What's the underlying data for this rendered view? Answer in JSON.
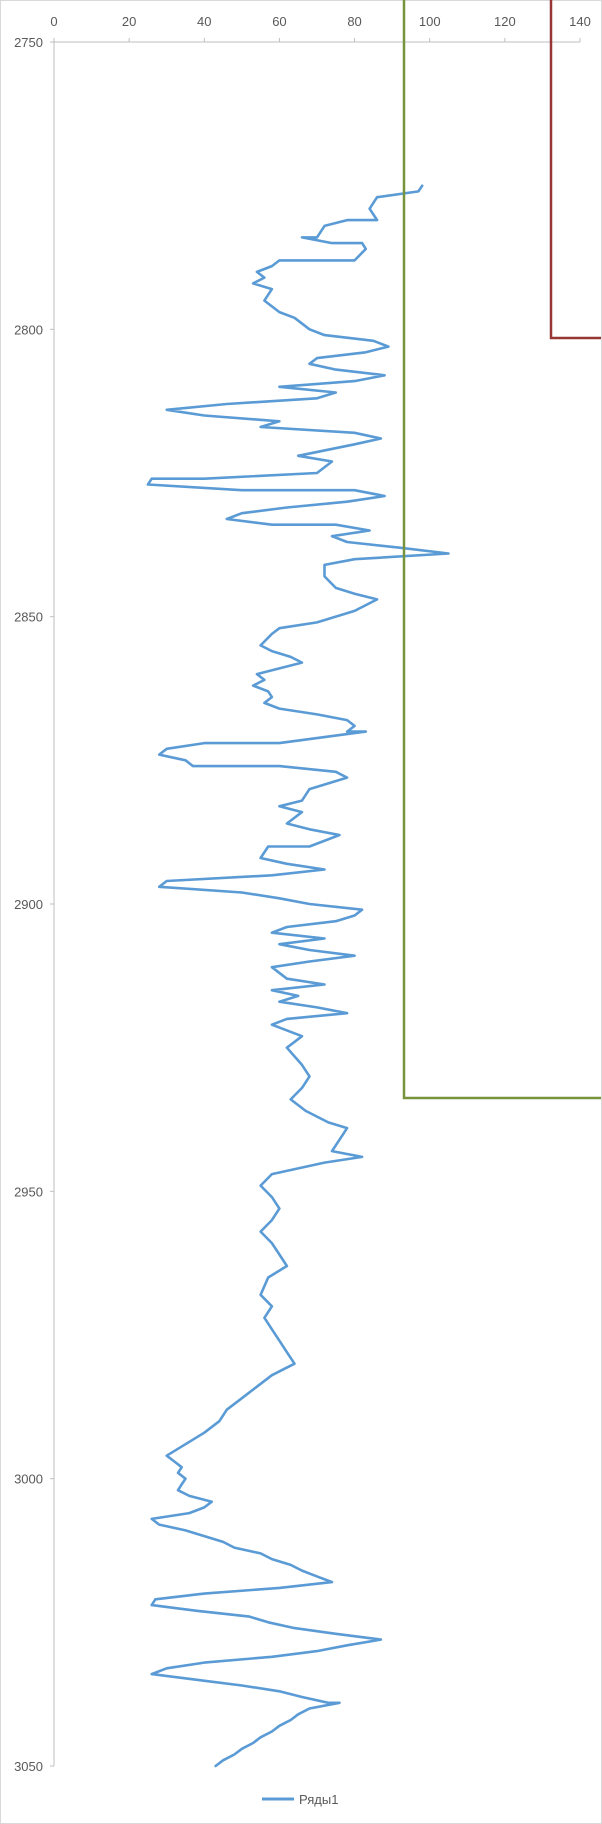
{
  "chart_data": {
    "type": "line",
    "title": "",
    "xlabel": "",
    "ylabel": "",
    "xlim": [
      0,
      140
    ],
    "ylim": [
      2750,
      3050
    ],
    "x_axis_position": "top",
    "y_axis_reversed": true,
    "grid": false,
    "legend": "bottom",
    "x_ticks": [
      "0",
      "20",
      "40",
      "60",
      "80",
      "100",
      "120",
      "140"
    ],
    "y_ticks": [
      "2750",
      "2800",
      "2850",
      "2900",
      "2950",
      "3000",
      "3050"
    ],
    "series": [
      {
        "name": "Ряды1",
        "color": "#5b9bd5",
        "points": [
          [
            98,
            2775
          ],
          [
            97,
            2776
          ],
          [
            86,
            2777
          ],
          [
            84,
            2779
          ],
          [
            86,
            2781
          ],
          [
            78,
            2781
          ],
          [
            72,
            2782
          ],
          [
            70,
            2784
          ],
          [
            66,
            2784
          ],
          [
            74,
            2785
          ],
          [
            82,
            2785
          ],
          [
            83,
            2786
          ],
          [
            80,
            2788
          ],
          [
            60,
            2788
          ],
          [
            58,
            2789
          ],
          [
            54,
            2790
          ],
          [
            56,
            2791
          ],
          [
            53,
            2792
          ],
          [
            58,
            2793
          ],
          [
            56,
            2795
          ],
          [
            60,
            2797
          ],
          [
            64,
            2798
          ],
          [
            68,
            2800
          ],
          [
            72,
            2801
          ],
          [
            85,
            2802
          ],
          [
            89,
            2803
          ],
          [
            83,
            2804
          ],
          [
            70,
            2805
          ],
          [
            68,
            2806
          ],
          [
            75,
            2807
          ],
          [
            88,
            2808
          ],
          [
            80,
            2809
          ],
          [
            60,
            2810
          ],
          [
            75,
            2811
          ],
          [
            70,
            2812
          ],
          [
            46,
            2813
          ],
          [
            30,
            2814
          ],
          [
            40,
            2815
          ],
          [
            60,
            2816
          ],
          [
            55,
            2817
          ],
          [
            80,
            2818
          ],
          [
            87,
            2819
          ],
          [
            80,
            2820
          ],
          [
            65,
            2822
          ],
          [
            74,
            2823
          ],
          [
            70,
            2825
          ],
          [
            40,
            2826
          ],
          [
            26,
            2826
          ],
          [
            25,
            2827
          ],
          [
            50,
            2828
          ],
          [
            80,
            2828
          ],
          [
            88,
            2829
          ],
          [
            78,
            2830
          ],
          [
            62,
            2831
          ],
          [
            50,
            2832
          ],
          [
            46,
            2833
          ],
          [
            58,
            2834
          ],
          [
            75,
            2834
          ],
          [
            84,
            2835
          ],
          [
            74,
            2836
          ],
          [
            78,
            2837
          ],
          [
            92,
            2838
          ],
          [
            105,
            2839
          ],
          [
            80,
            2840
          ],
          [
            72,
            2841
          ],
          [
            72,
            2843
          ],
          [
            75,
            2845
          ],
          [
            80,
            2846
          ],
          [
            86,
            2847
          ],
          [
            80,
            2849
          ],
          [
            70,
            2851
          ],
          [
            60,
            2852
          ],
          [
            58,
            2853
          ],
          [
            55,
            2855
          ],
          [
            58,
            2856
          ],
          [
            63,
            2857
          ],
          [
            66,
            2858
          ],
          [
            60,
            2859
          ],
          [
            54,
            2860
          ],
          [
            56,
            2861
          ],
          [
            53,
            2862
          ],
          [
            57,
            2863
          ],
          [
            58,
            2864
          ],
          [
            56,
            2865
          ],
          [
            60,
            2866
          ],
          [
            70,
            2867
          ],
          [
            78,
            2868
          ],
          [
            80,
            2869
          ],
          [
            78,
            2870
          ],
          [
            83,
            2870
          ],
          [
            60,
            2872
          ],
          [
            40,
            2872
          ],
          [
            30,
            2873
          ],
          [
            28,
            2874
          ],
          [
            35,
            2875
          ],
          [
            37,
            2876
          ],
          [
            60,
            2876
          ],
          [
            75,
            2877
          ],
          [
            78,
            2878
          ],
          [
            68,
            2880
          ],
          [
            66,
            2882
          ],
          [
            60,
            2883
          ],
          [
            66,
            2884
          ],
          [
            62,
            2886
          ],
          [
            68,
            2887
          ],
          [
            76,
            2888
          ],
          [
            68,
            2890
          ],
          [
            57,
            2890
          ],
          [
            55,
            2892
          ],
          [
            62,
            2893
          ],
          [
            72,
            2894
          ],
          [
            58,
            2895
          ],
          [
            30,
            2896
          ],
          [
            28,
            2897
          ],
          [
            50,
            2898
          ],
          [
            60,
            2899
          ],
          [
            68,
            2900
          ],
          [
            82,
            2901
          ],
          [
            80,
            2902
          ],
          [
            75,
            2903
          ],
          [
            62,
            2904
          ],
          [
            58,
            2905
          ],
          [
            72,
            2906
          ],
          [
            60,
            2907
          ],
          [
            68,
            2908
          ],
          [
            80,
            2909
          ],
          [
            68,
            2910
          ],
          [
            58,
            2911
          ],
          [
            62,
            2913
          ],
          [
            72,
            2914
          ],
          [
            58,
            2915
          ],
          [
            65,
            2916
          ],
          [
            60,
            2917
          ],
          [
            70,
            2918
          ],
          [
            78,
            2919
          ],
          [
            62,
            2920
          ],
          [
            58,
            2921
          ],
          [
            66,
            2923
          ],
          [
            62,
            2925
          ],
          [
            66,
            2928
          ],
          [
            68,
            2930
          ],
          [
            66,
            2932
          ],
          [
            63,
            2934
          ],
          [
            67,
            2936
          ],
          [
            73,
            2938
          ],
          [
            78,
            2939
          ],
          [
            77,
            2940
          ],
          [
            74,
            2943
          ],
          [
            82,
            2944
          ],
          [
            72,
            2945
          ],
          [
            58,
            2947
          ],
          [
            55,
            2949
          ],
          [
            58,
            2951
          ],
          [
            60,
            2953
          ],
          [
            58,
            2955
          ],
          [
            55,
            2957
          ],
          [
            58,
            2959
          ],
          [
            60,
            2961
          ],
          [
            62,
            2963
          ],
          [
            57,
            2965
          ],
          [
            55,
            2968
          ],
          [
            58,
            2970
          ],
          [
            56,
            2972
          ],
          [
            58,
            2974
          ],
          [
            60,
            2976
          ],
          [
            62,
            2978
          ],
          [
            64,
            2980
          ],
          [
            58,
            2982
          ],
          [
            54,
            2984
          ],
          [
            50,
            2986
          ],
          [
            46,
            2988
          ],
          [
            44,
            2990
          ],
          [
            40,
            2992
          ],
          [
            35,
            2994
          ],
          [
            30,
            2996
          ],
          [
            32,
            2997
          ],
          [
            34,
            2998
          ],
          [
            33,
            2999
          ],
          [
            35,
            3000
          ],
          [
            34,
            3001
          ],
          [
            33,
            3002
          ],
          [
            36,
            3003
          ],
          [
            42,
            3004
          ],
          [
            40,
            3005
          ],
          [
            36,
            3006
          ],
          [
            26,
            3007
          ],
          [
            28,
            3008
          ],
          [
            35,
            3009
          ],
          [
            40,
            3010
          ],
          [
            45,
            3011
          ],
          [
            48,
            3012
          ],
          [
            55,
            3013
          ],
          [
            58,
            3014
          ],
          [
            63,
            3015
          ],
          [
            66,
            3016
          ],
          [
            70,
            3017
          ],
          [
            74,
            3018
          ],
          [
            60,
            3019
          ],
          [
            40,
            3020
          ],
          [
            27,
            3021
          ],
          [
            26,
            3022
          ],
          [
            38,
            3023
          ],
          [
            52,
            3024
          ],
          [
            57,
            3025
          ],
          [
            64,
            3026
          ],
          [
            75,
            3027
          ],
          [
            87,
            3028
          ],
          [
            78,
            3029
          ],
          [
            70,
            3030
          ],
          [
            58,
            3031
          ],
          [
            40,
            3032
          ],
          [
            30,
            3033
          ],
          [
            26,
            3034
          ],
          [
            38,
            3035
          ],
          [
            50,
            3036
          ],
          [
            60,
            3037
          ],
          [
            66,
            3038
          ],
          [
            73,
            3039
          ],
          [
            76,
            3039
          ],
          [
            68,
            3040
          ],
          [
            65,
            3041
          ],
          [
            63,
            3042
          ],
          [
            60,
            3043
          ],
          [
            58,
            3044
          ],
          [
            55,
            3045
          ],
          [
            53,
            3046
          ],
          [
            50,
            3047
          ],
          [
            48,
            3048
          ],
          [
            45,
            3049
          ],
          [
            43,
            3050
          ]
        ]
      }
    ]
  },
  "annotations": {
    "green_box_color": "#77933c",
    "red_box_color": "#953735"
  }
}
